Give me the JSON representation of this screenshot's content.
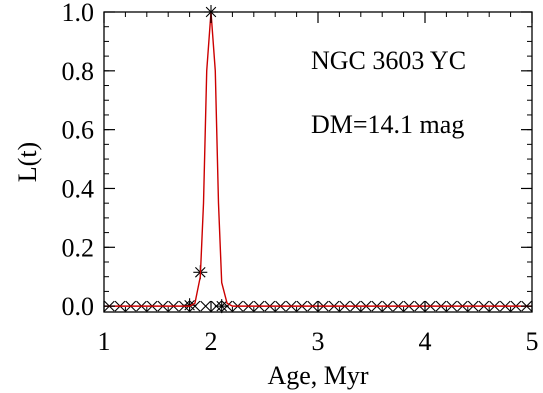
{
  "chart_data": {
    "type": "scatter",
    "title": "",
    "xlabel": "Age, Myr",
    "ylabel": "L(t)",
    "xlim": [
      1,
      5
    ],
    "ylim": [
      -0.02,
      1.0
    ],
    "xticks": [
      1,
      2,
      3,
      4,
      5
    ],
    "xtick_labels": [
      "1",
      "2",
      "3",
      "4",
      "5"
    ],
    "yticks": [
      0.0,
      0.2,
      0.4,
      0.6,
      0.8,
      1.0
    ],
    "ytick_labels": [
      "0.0",
      "0.2",
      "0.4",
      "0.6",
      "0.8",
      "1.0"
    ],
    "grid": false,
    "annotations": [
      "NGC 3603 YC",
      "DM=14.1 mag"
    ],
    "series": [
      {
        "marker": "x",
        "color": "#000000",
        "x": [
          1.05,
          1.15,
          1.25,
          1.35,
          1.45,
          1.55,
          1.65,
          1.75,
          1.85,
          1.95,
          2.05,
          2.15,
          2.25,
          2.35,
          2.45,
          2.55,
          2.65,
          2.75,
          2.85,
          2.95,
          3.05,
          3.15,
          3.25,
          3.35,
          3.45,
          3.55,
          3.65,
          3.75,
          3.85,
          3.95,
          4.05,
          4.15,
          4.25,
          4.35,
          4.45,
          4.55,
          4.65,
          4.75,
          4.85,
          4.95
        ],
        "y": [
          0,
          0,
          0,
          0,
          0,
          0,
          0,
          0,
          0,
          0,
          0,
          0,
          0,
          0,
          0,
          0,
          0,
          0,
          0,
          0,
          0,
          0,
          0,
          0,
          0,
          0,
          0,
          0,
          0,
          0,
          0,
          0,
          0,
          0,
          0,
          0,
          0,
          0,
          0,
          0
        ]
      },
      {
        "marker": "asterisk",
        "color": "#000000",
        "x": [
          1.8,
          1.9,
          2.0,
          2.1
        ],
        "y": [
          0.003,
          0.115,
          1.0,
          0.0
        ]
      },
      {
        "marker": "line",
        "color": "#cc0000",
        "x": [
          1.0,
          1.8,
          1.85,
          1.9,
          1.93,
          1.96,
          2.0,
          2.04,
          2.07,
          2.1,
          2.15,
          2.2,
          5.0
        ],
        "y": [
          0.0,
          0.0,
          0.01,
          0.1,
          0.35,
          0.8,
          1.0,
          0.8,
          0.35,
          0.08,
          0.01,
          0.0,
          0.0
        ]
      }
    ]
  }
}
